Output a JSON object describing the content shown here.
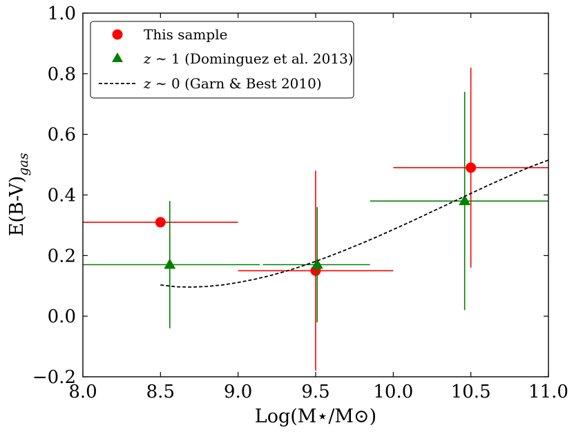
{
  "chart_data": {
    "type": "scatter",
    "title": "",
    "xlabel": "Log(M⋆/M⊙)",
    "ylabel": "E(B-V)",
    "ylabel_subscript": "gas",
    "xlim": [
      8.0,
      11.0
    ],
    "ylim": [
      -0.2,
      1.0
    ],
    "xticks": [
      8.0,
      8.5,
      9.0,
      9.5,
      10.0,
      10.5,
      11.0
    ],
    "xtick_labels": [
      "8.0",
      "8.5",
      "9.0",
      "9.5",
      "10.0",
      "10.5",
      "11.0"
    ],
    "yticks": [
      -0.2,
      0.0,
      0.2,
      0.4,
      0.6,
      0.8,
      1.0
    ],
    "ytick_labels": [
      "−0.2",
      "0.0",
      "0.2",
      "0.4",
      "0.6",
      "0.8",
      "1.0"
    ],
    "grid": false,
    "legend_position": "top-left",
    "series": [
      {
        "name": "This sample",
        "legend_label": "This sample",
        "marker": "circle",
        "color": "#ff0000",
        "points": [
          {
            "x": 8.5,
            "y": 0.31,
            "xerr_low": 8.0,
            "xerr_high": 9.0,
            "yerr_low": 0.31,
            "yerr_high": 0.31
          },
          {
            "x": 9.5,
            "y": 0.15,
            "xerr_low": 9.0,
            "xerr_high": 10.0,
            "yerr_low": -0.18,
            "yerr_high": 0.48
          },
          {
            "x": 10.5,
            "y": 0.49,
            "xerr_low": 10.0,
            "xerr_high": 11.0,
            "yerr_low": 0.16,
            "yerr_high": 0.82
          }
        ]
      },
      {
        "name": "z ~ 1 (Dominguez et al. 2013)",
        "legend_label_italic": "z",
        "legend_label_rest": " ∼ 1 (Dominguez et al. 2013)",
        "marker": "triangle",
        "color": "#008000",
        "points": [
          {
            "x": 8.56,
            "y": 0.17,
            "xerr_low": 8.0,
            "xerr_high": 9.14,
            "yerr_low": -0.04,
            "yerr_high": 0.38
          },
          {
            "x": 9.51,
            "y": 0.17,
            "xerr_low": 9.16,
            "xerr_high": 9.85,
            "yerr_low": -0.02,
            "yerr_high": 0.36
          },
          {
            "x": 10.46,
            "y": 0.38,
            "xerr_low": 9.85,
            "xerr_high": 11.0,
            "yerr_low": 0.02,
            "yerr_high": 0.74
          }
        ]
      },
      {
        "name": "z ~ 0 (Garn & Best 2010)",
        "legend_label_italic": "z",
        "legend_label_rest": " ∼ 0 (Garn & Best 2010)",
        "marker": "dashed-line",
        "color": "#000000",
        "x": [
          8.5,
          8.6,
          8.7,
          8.8,
          8.9,
          9.0,
          9.1,
          9.2,
          9.3,
          9.4,
          9.5,
          9.6,
          9.7,
          9.8,
          9.9,
          10.0,
          10.1,
          10.2,
          10.3,
          10.4,
          10.5,
          10.6,
          10.7,
          10.8,
          10.9,
          11.0
        ],
        "y": [
          0.103,
          0.097,
          0.096,
          0.098,
          0.103,
          0.111,
          0.121,
          0.133,
          0.147,
          0.163,
          0.181,
          0.2,
          0.22,
          0.241,
          0.263,
          0.286,
          0.309,
          0.333,
          0.357,
          0.381,
          0.405,
          0.429,
          0.452,
          0.475,
          0.496,
          0.515
        ]
      }
    ]
  }
}
